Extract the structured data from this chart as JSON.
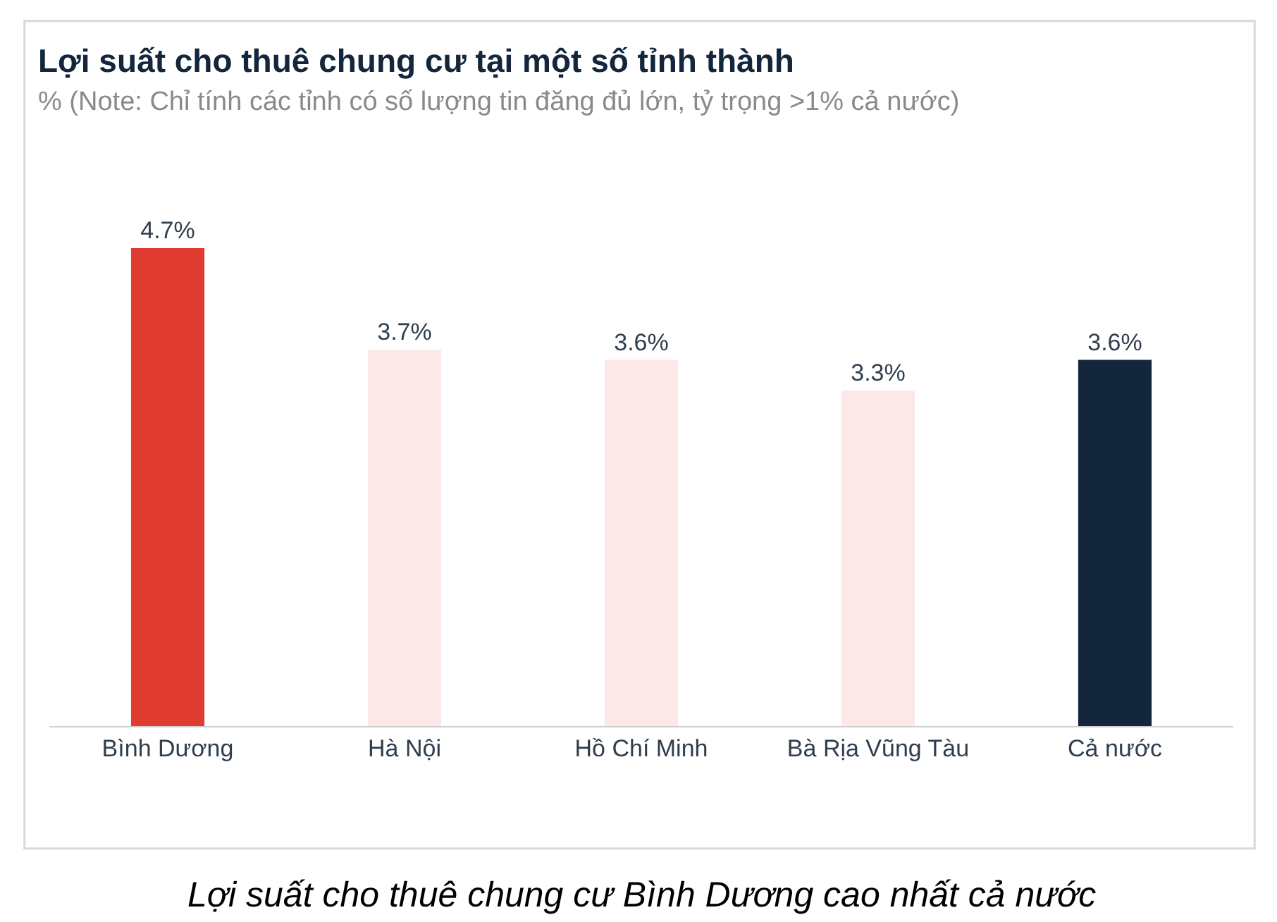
{
  "chart_data": {
    "type": "bar",
    "title": "Lợi suất cho thuê chung cư tại một số tỉnh thành",
    "subtitle": "% (Note: Chỉ tính các tỉnh có số lượng tin đăng đủ lớn, tỷ trọng >1% cả nước)",
    "categories": [
      "Bình Dương",
      "Hà Nội",
      "Hồ Chí Minh",
      "Bà Rịa Vũng Tàu",
      "Cả nước"
    ],
    "values": [
      4.7,
      3.7,
      3.6,
      3.3,
      3.6
    ],
    "colors": [
      "#e03c31",
      "#fde8e8",
      "#fde8e8",
      "#fde8e8",
      "#13263c"
    ],
    "value_labels": [
      "4.7%",
      "3.7%",
      "3.6%",
      "3.3%",
      "3.6%"
    ],
    "annotations": [
      "Lợi suất cho thuê chung cư Bình Dương cao nhất cả nước"
    ]
  }
}
